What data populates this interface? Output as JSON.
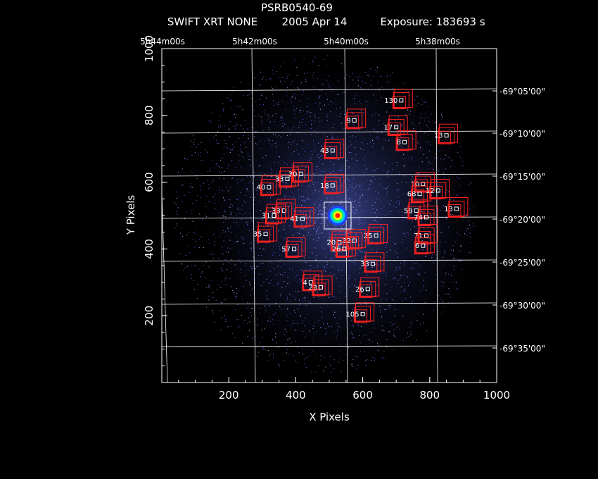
{
  "chart_data": {
    "type": "scatter",
    "title": "PSRB0540-69",
    "subtitle": {
      "instrument": "SWIFT XRT NONE",
      "date": "2005 Apr 14",
      "exposure": "Exposure: 183693 s"
    },
    "xlabel": "X Pixels",
    "ylabel": "Y Pixels",
    "xlim": [
      0,
      1000
    ],
    "ylim": [
      0,
      1000
    ],
    "x_ticks": [
      200,
      400,
      600,
      800,
      1000
    ],
    "y_ticks": [
      200,
      400,
      600,
      800,
      1000
    ],
    "ra_ticks": [
      "5h44m00s",
      "5h42m00s",
      "5h40m00s",
      "5h38m00s"
    ],
    "dec_ticks": [
      "-69°05'00\"",
      "-69°10'00\"",
      "-69°15'00\"",
      "-69°20'00\"",
      "-69°25'00\"",
      "-69°30'00\"",
      "-69°35'00\""
    ],
    "center_source": {
      "x": 525,
      "y": 500,
      "box_size": 80
    },
    "sources": [
      {
        "id": "130",
        "x": 715,
        "y": 845
      },
      {
        "id": "9",
        "x": 575,
        "y": 785
      },
      {
        "id": "17",
        "x": 700,
        "y": 765
      },
      {
        "id": "43",
        "x": 510,
        "y": 695
      },
      {
        "id": "13",
        "x": 850,
        "y": 740
      },
      {
        "id": "8",
        "x": 725,
        "y": 720
      },
      {
        "id": "30",
        "x": 415,
        "y": 625
      },
      {
        "id": "33",
        "x": 375,
        "y": 610
      },
      {
        "id": "40",
        "x": 320,
        "y": 585
      },
      {
        "id": "18",
        "x": 510,
        "y": 590
      },
      {
        "id": "10",
        "x": 780,
        "y": 595
      },
      {
        "id": "68",
        "x": 770,
        "y": 565
      },
      {
        "id": "12",
        "x": 825,
        "y": 575
      },
      {
        "id": "13",
        "x": 880,
        "y": 520
      },
      {
        "id": "59",
        "x": 760,
        "y": 515
      },
      {
        "id": "33",
        "x": 365,
        "y": 515
      },
      {
        "id": "31",
        "x": 335,
        "y": 500
      },
      {
        "id": "41",
        "x": 420,
        "y": 490
      },
      {
        "id": "74",
        "x": 790,
        "y": 495
      },
      {
        "id": "35",
        "x": 310,
        "y": 445
      },
      {
        "id": "71",
        "x": 790,
        "y": 440
      },
      {
        "id": "25",
        "x": 640,
        "y": 440
      },
      {
        "id": "22",
        "x": 575,
        "y": 425
      },
      {
        "id": "20",
        "x": 530,
        "y": 420
      },
      {
        "id": "57",
        "x": 395,
        "y": 400
      },
      {
        "id": "26",
        "x": 545,
        "y": 400
      },
      {
        "id": "6",
        "x": 780,
        "y": 410
      },
      {
        "id": "33",
        "x": 630,
        "y": 355
      },
      {
        "id": "4",
        "x": 445,
        "y": 300
      },
      {
        "id": "23",
        "x": 475,
        "y": 285
      },
      {
        "id": "26",
        "x": 615,
        "y": 280
      },
      {
        "id": "105",
        "x": 600,
        "y": 205
      }
    ]
  }
}
